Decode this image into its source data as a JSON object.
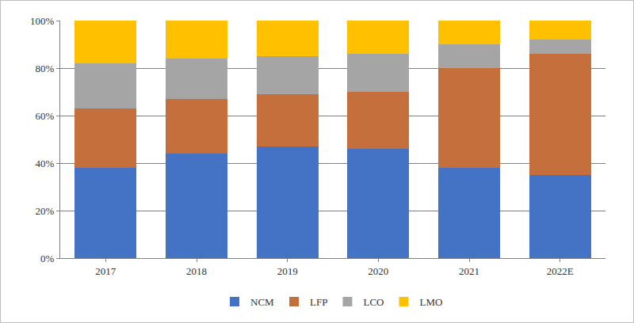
{
  "chart_data": {
    "type": "bar",
    "stacked": true,
    "grid": true,
    "legend": "bottom",
    "categories": [
      "2017",
      "2018",
      "2019",
      "2020",
      "2021",
      "2022E"
    ],
    "series": [
      {
        "name": "NCM",
        "color": "#4472c4",
        "values": [
          38,
          44,
          47,
          46,
          38,
          35
        ]
      },
      {
        "name": "LFP",
        "color": "#c5703c",
        "values": [
          25,
          23,
          22,
          24,
          42,
          51
        ]
      },
      {
        "name": "LCO",
        "color": "#a5a5a5",
        "values": [
          19,
          17,
          16,
          16,
          10,
          6
        ]
      },
      {
        "name": "LMO",
        "color": "#ffc000",
        "values": [
          18,
          16,
          15,
          14,
          10,
          8
        ]
      }
    ],
    "ylim": [
      0,
      100
    ],
    "yticks": [
      {
        "value": 0,
        "label": "0%"
      },
      {
        "value": 20,
        "label": "20%"
      },
      {
        "value": 40,
        "label": "40%"
      },
      {
        "value": 60,
        "label": "60%"
      },
      {
        "value": 80,
        "label": "80%"
      },
      {
        "value": 100,
        "label": "100%"
      }
    ]
  }
}
